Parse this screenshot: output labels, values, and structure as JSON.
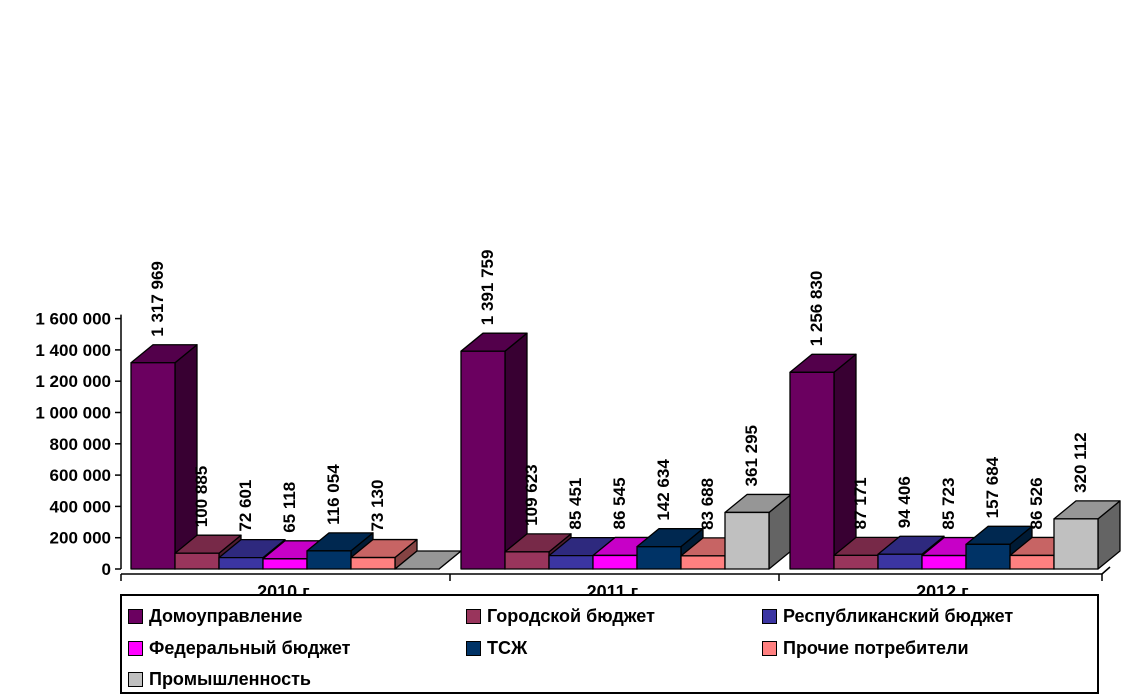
{
  "chart_data": {
    "type": "bar",
    "style": "3d-clustered-column",
    "categories": [
      "2010 г.",
      "2011 г.",
      "2012 г."
    ],
    "series": [
      {
        "name": "Домоуправление",
        "color": "#6b0060",
        "values": [
          1317969,
          1391759,
          1256830
        ],
        "labels": [
          "1 317 969",
          "1 391 759",
          "1 256 830"
        ]
      },
      {
        "name": "Городской бюджет",
        "color": "#99355c",
        "values": [
          100885,
          109623,
          87171
        ],
        "labels": [
          "100 885",
          "109 623",
          "87 171"
        ]
      },
      {
        "name": "Республиканский бюджет",
        "color": "#3b35a2",
        "values": [
          72601,
          85451,
          94406
        ],
        "labels": [
          "72 601",
          "85 451",
          "94 406"
        ]
      },
      {
        "name": "Федеральный бюджет",
        "color": "#ff00ff",
        "values": [
          65118,
          86545,
          85723
        ],
        "labels": [
          "65 118",
          "86 545",
          "85 723"
        ]
      },
      {
        "name": "ТСЖ",
        "color": "#003366",
        "values": [
          116054,
          142634,
          157684
        ],
        "labels": [
          "116 054",
          "142 634",
          "157 684"
        ]
      },
      {
        "name": "Прочие потребители",
        "color": "#ff8080",
        "values": [
          73130,
          83688,
          86526
        ],
        "labels": [
          "73 130",
          "83 688",
          "86 526"
        ]
      },
      {
        "name": "Промышленность",
        "color": "#c0c0c0",
        "values": [
          0,
          361295,
          320112
        ],
        "labels": [
          "",
          "361 295",
          "320 112"
        ]
      }
    ],
    "y_ticks": [
      "0",
      "200 000",
      "400 000",
      "600 000",
      "800 000",
      "1 000 000",
      "1 200 000",
      "1 400 000",
      "1 600 000"
    ],
    "ylim": [
      0,
      1600000
    ],
    "grid": false,
    "legend_position": "bottom"
  }
}
